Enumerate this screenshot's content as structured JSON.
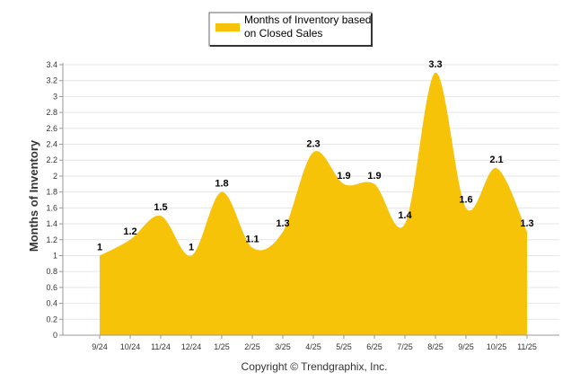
{
  "chart_data": {
    "type": "area",
    "title": "",
    "legend": [
      "Months of Inventory based",
      "on Closed Sales"
    ],
    "legend_position": "top",
    "ylabel": "Months of Inventory",
    "xlabel": "",
    "footer": "Copyright © Trendgraphix, Inc.",
    "ylim": [
      0,
      3.4
    ],
    "ystep": 0.2,
    "ytick_labels": [
      "0",
      "0.2",
      "0.4",
      "0.6",
      "0.8",
      "1",
      "1.2",
      "1.4",
      "1.6",
      "1.8",
      "2",
      "2.2",
      "2.4",
      "2.6",
      "2.8",
      "3",
      "3.2",
      "3.4"
    ],
    "categories": [
      "9/24",
      "10/24",
      "11/24",
      "12/24",
      "1/25",
      "2/25",
      "3/25",
      "4/25",
      "5/25",
      "6/25",
      "7/25",
      "8/25",
      "9/25",
      "10/25",
      "11/25"
    ],
    "values": [
      1,
      1.2,
      1.5,
      1,
      1.8,
      1.1,
      1.3,
      2.3,
      1.9,
      1.9,
      1.4,
      3.3,
      1.6,
      2.1,
      1.3
    ],
    "value_labels": [
      "1",
      "1.2",
      "1.5",
      "1",
      "1.8",
      "1.1",
      "1.3",
      "2.3",
      "1.9",
      "1.9",
      "1.4",
      "3.3",
      "1.6",
      "2.1",
      "1.3"
    ],
    "color": "#F7C309"
  }
}
